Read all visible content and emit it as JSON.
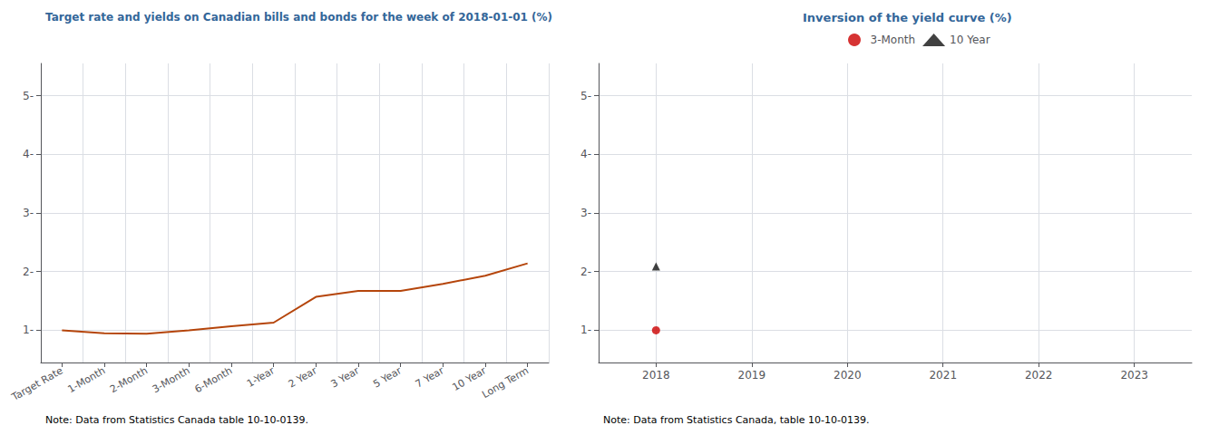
{
  "chart_data": [
    {
      "type": "line",
      "title": "Target rate and yields on Canadian bills and bonds for the week of 2018-01-01 (%)",
      "annotation": "Note: Data from Statistics Canada table 10-10-0139.",
      "categories": [
        "Target Rate",
        "1-Month",
        "2-Month",
        "3-Month",
        "6-Month",
        "1-Year",
        "2 Year",
        "3 Year",
        "5 Year",
        "7 Year",
        "10 Year",
        "Long Term"
      ],
      "values": [
        1.0,
        0.95,
        0.94,
        1.0,
        1.07,
        1.13,
        1.57,
        1.67,
        1.67,
        1.79,
        1.93,
        2.14
      ],
      "color": "#b5450b",
      "ylim": [
        0.45,
        5.55
      ],
      "yticks": [
        {
          "value": 1,
          "label": "1-"
        },
        {
          "value": 2,
          "label": "2-"
        },
        {
          "value": 3,
          "label": "3-"
        },
        {
          "value": 4,
          "label": "4-"
        },
        {
          "value": 5,
          "label": "5-"
        }
      ],
      "grid": true
    },
    {
      "type": "scatter",
      "title": "Inversion of the yield curve (%)",
      "annotation": "Note: Data from Statistics Canada, table 10-10-0139.",
      "xlim": [
        2017.4,
        2023.6
      ],
      "xticks": [
        2018,
        2019,
        2020,
        2021,
        2022,
        2023
      ],
      "ylim": [
        0.45,
        5.55
      ],
      "yticks": [
        {
          "value": 1,
          "label": "1-"
        },
        {
          "value": 2,
          "label": "2-"
        },
        {
          "value": 3,
          "label": "3-"
        },
        {
          "value": 4,
          "label": "4-"
        },
        {
          "value": 5,
          "label": "5-"
        }
      ],
      "series": [
        {
          "name": "3-Month",
          "color": "#cc0000",
          "marker": "circle",
          "x": [
            2018
          ],
          "values": [
            1.0
          ]
        },
        {
          "name": "10 Year",
          "color": "#111111",
          "marker": "triangle",
          "x": [
            2018
          ],
          "values": [
            2.09
          ]
        }
      ],
      "legend": "top",
      "grid": true
    }
  ]
}
